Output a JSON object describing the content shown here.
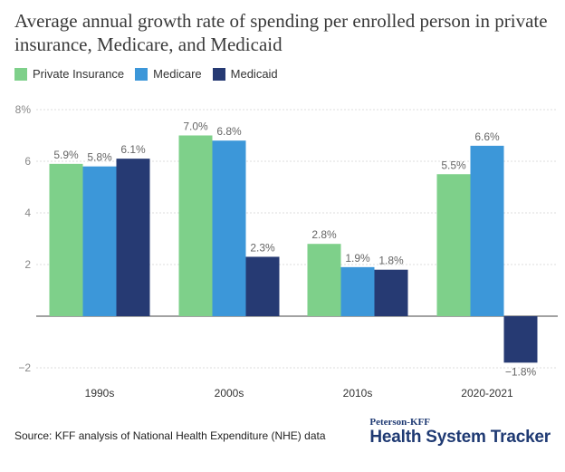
{
  "header": {
    "title": "Average annual growth rate of spending per enrolled person in private insurance, Medicare, and Medicaid"
  },
  "legend": [
    {
      "label": "Private Insurance",
      "color": "#7ed08a"
    },
    {
      "label": "Medicare",
      "color": "#3c97d9"
    },
    {
      "label": "Medicaid",
      "color": "#263a73"
    }
  ],
  "footer": {
    "source": "Source: KFF analysis of National Health Expenditure (NHE) data",
    "brand_top": "Peterson-KFF",
    "brand_main": "Health System Tracker"
  },
  "chart_data": {
    "type": "bar",
    "categories": [
      "1990s",
      "2000s",
      "2010s",
      "2020-2021"
    ],
    "series": [
      {
        "name": "Private Insurance",
        "color": "#7ed08a",
        "values": [
          5.9,
          7.0,
          2.8,
          5.5
        ],
        "labels": [
          "5.9%",
          "7.0%",
          "2.8%",
          "5.5%"
        ]
      },
      {
        "name": "Medicare",
        "color": "#3c97d9",
        "values": [
          5.8,
          6.8,
          1.9,
          6.6
        ],
        "labels": [
          "5.8%",
          "6.8%",
          "1.9%",
          "6.6%"
        ]
      },
      {
        "name": "Medicaid",
        "color": "#263a73",
        "values": [
          6.1,
          2.3,
          1.8,
          -1.8
        ],
        "labels": [
          "6.1%",
          "2.3%",
          "1.8%",
          "−1.8%"
        ]
      }
    ],
    "yticks": [
      {
        "value": 8,
        "label": "8%"
      },
      {
        "value": 6,
        "label": "6"
      },
      {
        "value": 4,
        "label": "4"
      },
      {
        "value": 2,
        "label": "2"
      },
      {
        "value": -2,
        "label": "−2"
      }
    ],
    "ylim": [
      -2.3,
      8
    ],
    "grid": true,
    "legend_position": "top-left",
    "xlabel": "",
    "ylabel": ""
  }
}
